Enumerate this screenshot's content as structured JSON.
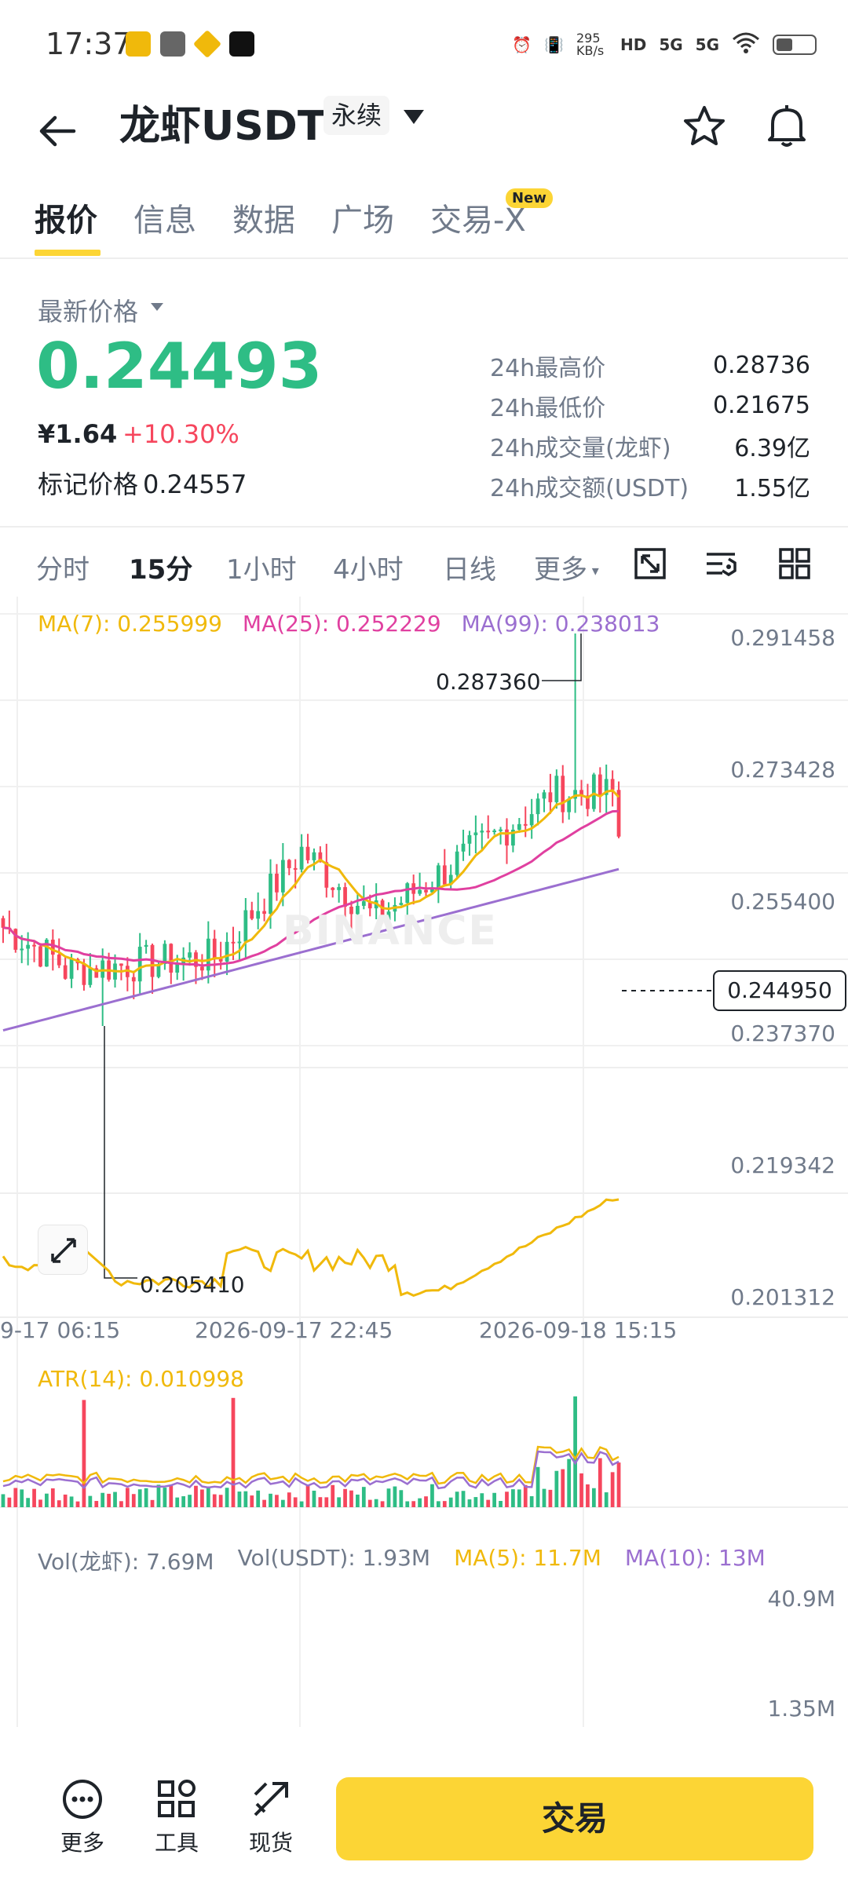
{
  "status_bar": {
    "time": "17:37",
    "net_speed": "295 KB/s",
    "signal_1": "5G",
    "signal_2": "5G"
  },
  "header": {
    "title": "龙虾USDT",
    "badge": "永续",
    "icons": [
      "back-arrow-icon",
      "chevron-down-icon",
      "star-icon",
      "bell-icon"
    ]
  },
  "tabs": {
    "items": [
      "报价",
      "信息",
      "数据",
      "广场",
      "交易-X"
    ],
    "active_index": 0,
    "new_badge": "New"
  },
  "price": {
    "latest_label": "最新价格",
    "last_price": "0.24493",
    "cny_price": "¥1.64",
    "change_pct": "+10.30%",
    "mark_label": "标记价格",
    "mark_value": "0.24557"
  },
  "stats": [
    {
      "label": "24h最高价",
      "value": "0.28736"
    },
    {
      "label": "24h最低价",
      "value": "0.21675"
    },
    {
      "label": "24h成交量(龙虾)",
      "value": "6.39亿"
    },
    {
      "label": "24h成交额(USDT)",
      "value": "1.55亿"
    }
  ],
  "timeframes": {
    "items": [
      "分时",
      "15分",
      "1小时",
      "4小时",
      "日线",
      "更多"
    ],
    "active": "15分"
  },
  "ma_legend": {
    "ma7": "MA(7): 0.255999",
    "ma25": "MA(25): 0.252229",
    "ma99": "MA(99): 0.238013"
  },
  "colors": {
    "up": "#2ebd85",
    "down": "#f6465d",
    "ma7": "#f0b90b",
    "ma25": "#e040a0",
    "ma99": "#9b6fd0",
    "accent": "#fcd535"
  },
  "chart": {
    "y_ticks": [
      "0.291458",
      "0.273428",
      "0.255400",
      "0.237370",
      "0.219342",
      "0.201312"
    ],
    "x_ticks": [
      "9-17 06:15",
      "2026-09-17 22:45",
      "2026-09-18 15:15"
    ],
    "high_annotation": "0.287360",
    "low_annotation": "0.205410",
    "current_price": "0.244950",
    "watermark": "BINANCE"
  },
  "atr": {
    "label": "ATR(14): 0.010998"
  },
  "volume": {
    "vol_base": "Vol(龙虾): 7.69M",
    "vol_quote": "Vol(USDT): 1.93M",
    "ma5": "MA(5): 11.7M",
    "ma10": "MA(10): 13M",
    "y_max": "40.9M",
    "y_min": "1.35M"
  },
  "chart_data": {
    "type": "candlestick",
    "ylim": [
      0.201312,
      0.291458
    ],
    "high": 0.28736,
    "low": 0.20541,
    "last": 0.24495,
    "ma7_last": 0.255999,
    "ma25_last": 0.252229,
    "ma99_last": 0.238013,
    "atr14_last": 0.010998
  },
  "bottom_nav": {
    "more": "更多",
    "tools": "工具",
    "spot": "现货",
    "trade": "交易"
  }
}
